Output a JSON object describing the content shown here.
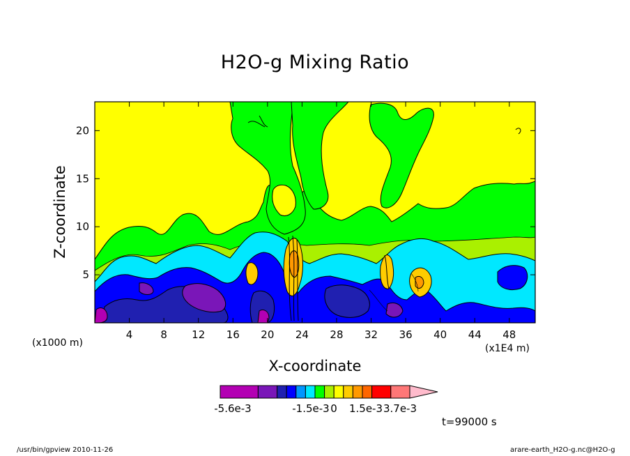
{
  "chart_data": {
    "type": "heatmap",
    "title": "H2O-g Mixing Ratio",
    "xlabel": "X-coordinate",
    "ylabel": "Z-coordinate",
    "x_unit_left": "(x1000 m)",
    "x_unit_right": "(x1E4 m)",
    "xlim": [
      0,
      51
    ],
    "ylim": [
      0,
      23
    ],
    "x_ticks": [
      4,
      8,
      12,
      16,
      20,
      24,
      28,
      32,
      36,
      40,
      44,
      48
    ],
    "y_ticks": [
      5,
      10,
      15,
      20
    ],
    "colorbar": {
      "colors": [
        "#b300b3",
        "#7a16b8",
        "#2020b0",
        "#0000ff",
        "#0096ff",
        "#00e8ff",
        "#00ff00",
        "#aaf000",
        "#ffff00",
        "#ffcc00",
        "#ff9900",
        "#ff6600",
        "#ff0000",
        "#ff7777",
        "#ffbbcc"
      ],
      "tick_labels": [
        "-5.6e-3",
        "-1.5e-3",
        "0",
        "1.5e-3",
        "3.7e-3"
      ]
    },
    "time_label": "t=99000 s"
  },
  "footer": {
    "left": "/usr/bin/gpview  2010-11-26",
    "right": "arare-earth_H2O-g.nc@H2O-g"
  },
  "colors": {
    "yellow": "#ffff00",
    "green": "#00ff00",
    "lime": "#aaf000",
    "cyan": "#00e8ff",
    "blue": "#0000ff",
    "navy": "#2020b0",
    "purple": "#7a16b8",
    "magenta": "#b300b3",
    "orange": "#ff9900",
    "gold": "#ffcc00",
    "red": "#ff0000"
  }
}
